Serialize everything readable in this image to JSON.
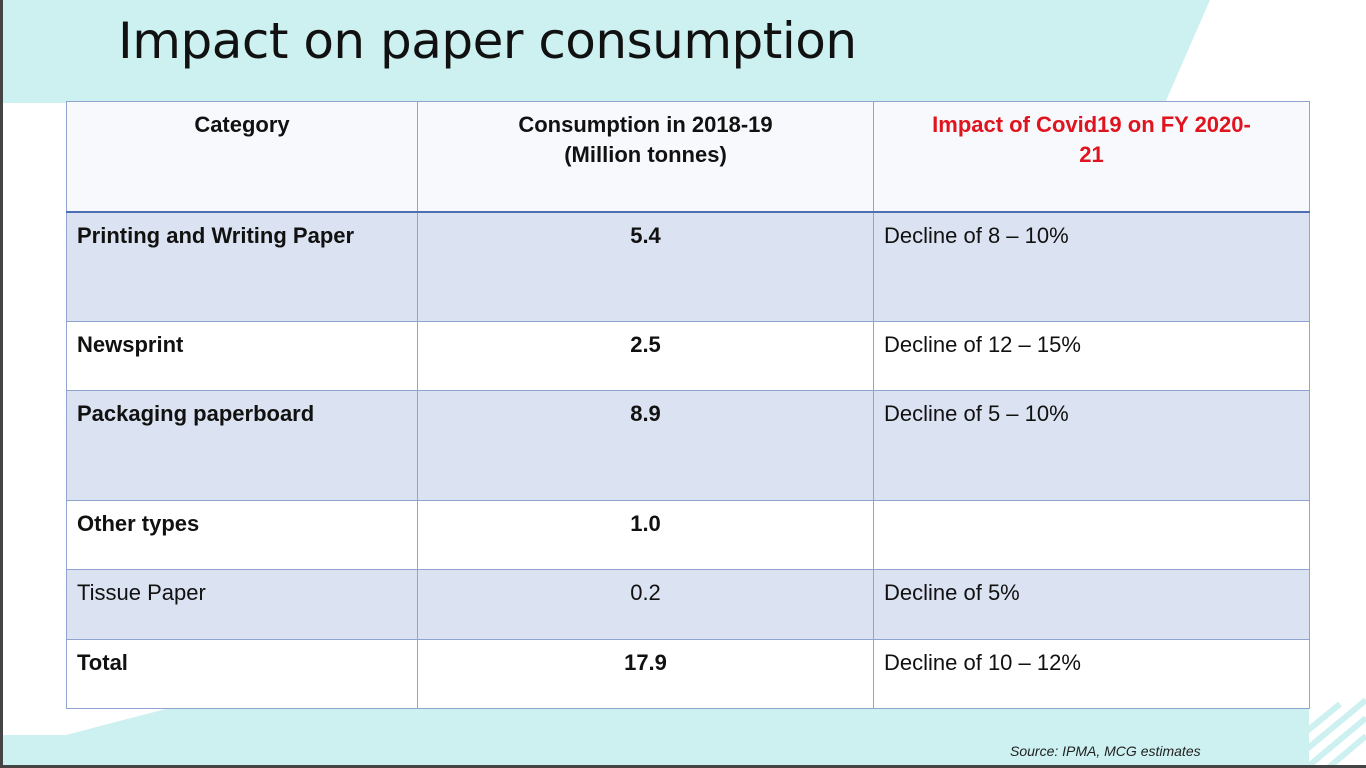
{
  "title": "Impact on paper consumption",
  "table": {
    "headers": [
      "Category",
      "Consumption in 2018-19\n(Million tonnes)",
      "Impact of Covid19 on FY 2020-\n21"
    ],
    "rows": [
      {
        "category": "Printing and Writing Paper",
        "consumption": "5.4",
        "impact": "Decline of 8 – 10%"
      },
      {
        "category": "Newsprint",
        "consumption": "2.5",
        "impact": "Decline of 12 – 15%"
      },
      {
        "category": "Packaging paperboard",
        "consumption": "8.9",
        "impact": "Decline of 5 – 10%"
      },
      {
        "category": "Other types",
        "consumption": "1.0",
        "impact": ""
      },
      {
        "category": "Tissue Paper",
        "consumption": "0.2",
        "impact": "Decline of 5%"
      },
      {
        "category": "Total",
        "consumption": "17.9",
        "impact": "Decline of 10 – 12%"
      }
    ]
  },
  "source": "Source: IPMA, MCG estimates",
  "colors": {
    "accent_teal": "#cdf0f0",
    "impact_header_red": "#e0141e",
    "row_shade": "#dbe2f1",
    "header_rule": "#4a6fb5"
  }
}
